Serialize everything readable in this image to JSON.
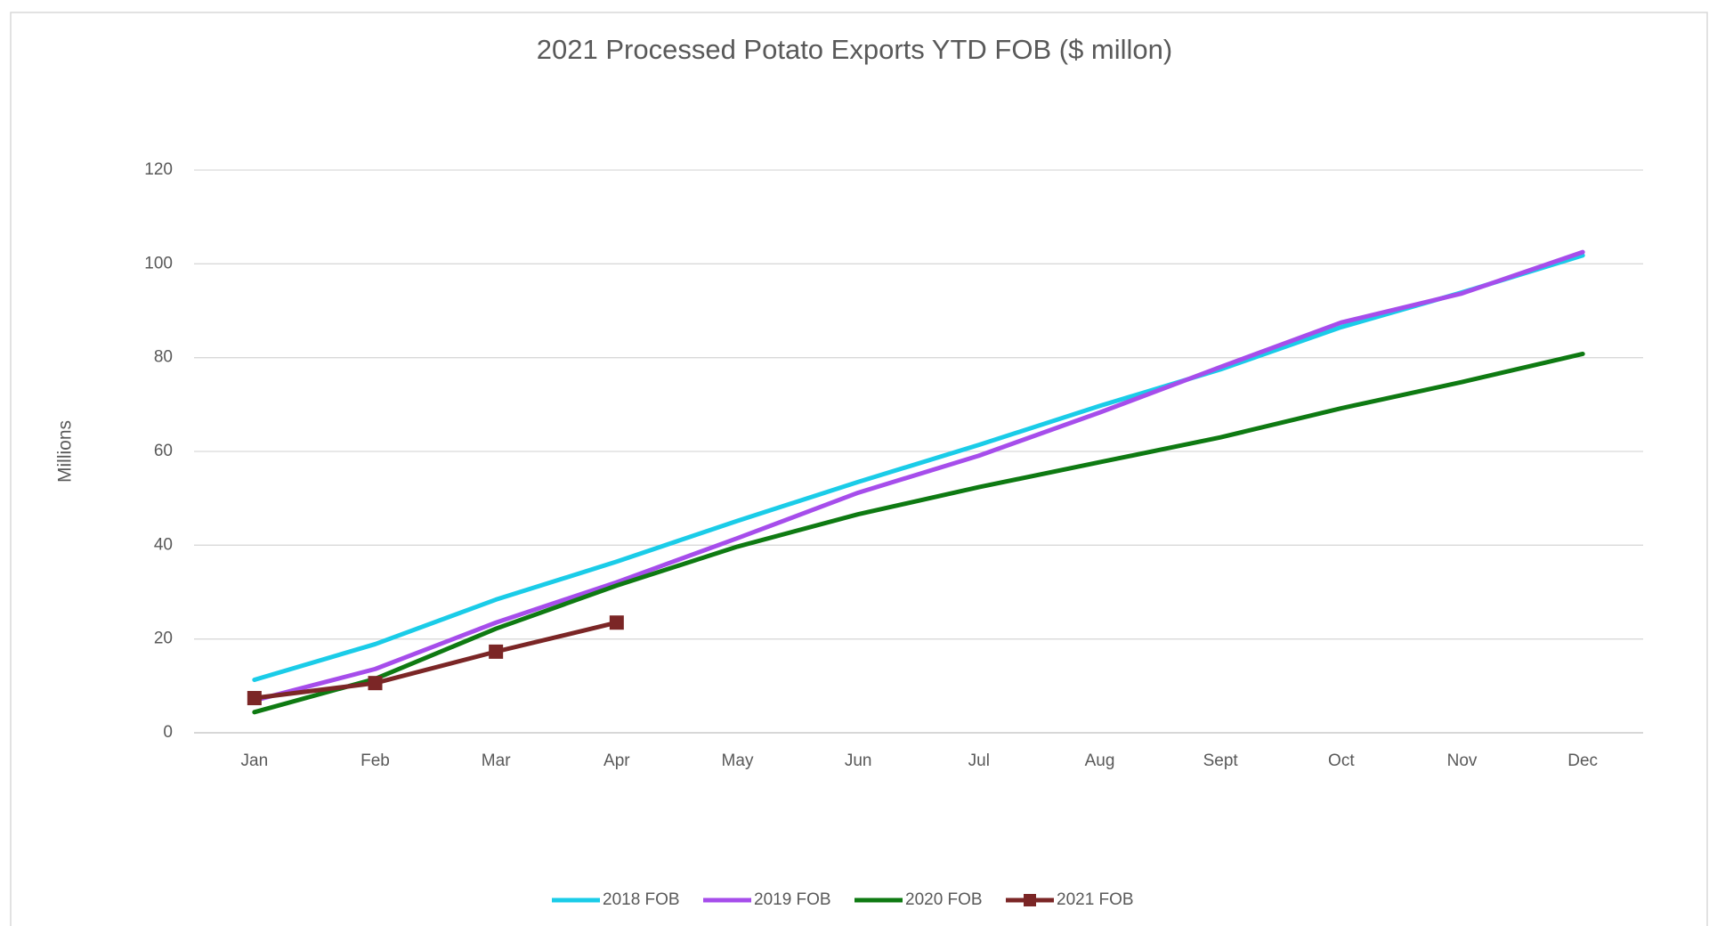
{
  "chart_data": {
    "type": "line",
    "title": "2021 Processed Potato Exports YTD FOB ($ millon)",
    "y_label": "Millions",
    "categories": [
      "Jan",
      "Feb",
      "Mar",
      "Apr",
      "May",
      "Jun",
      "Jul",
      "Aug",
      "Sept",
      "Oct",
      "Nov",
      "Dec"
    ],
    "series": [
      {
        "name": "2018 FOB",
        "color": "#1ACCE8",
        "values": [
          11.3,
          18.9,
          28.4,
          36.5,
          45.2,
          53.5,
          61.4,
          69.7,
          77.5,
          86.5,
          93.9,
          101.8
        ]
      },
      {
        "name": "2019 FOB",
        "color": "#A64DEB",
        "values": [
          6.9,
          13.6,
          23.5,
          32.1,
          41.5,
          51.2,
          59.1,
          68.3,
          78.0,
          87.5,
          93.7,
          102.5
        ]
      },
      {
        "name": "2020 FOB",
        "color": "#0E7A12",
        "values": [
          4.4,
          11.5,
          22.2,
          31.4,
          39.7,
          46.6,
          52.4,
          57.7,
          63.0,
          69.2,
          74.8,
          80.8
        ]
      },
      {
        "name": "2021 FOB",
        "color": "#7B2626",
        "marker": "square",
        "values": [
          7.4,
          10.6,
          17.3,
          23.5,
          null,
          null,
          null,
          null,
          null,
          null,
          null,
          null
        ]
      }
    ],
    "ylim": [
      0,
      120
    ],
    "yticks": [
      0,
      20,
      40,
      60,
      80,
      100,
      120
    ],
    "grid": true,
    "legend": "bottom"
  }
}
